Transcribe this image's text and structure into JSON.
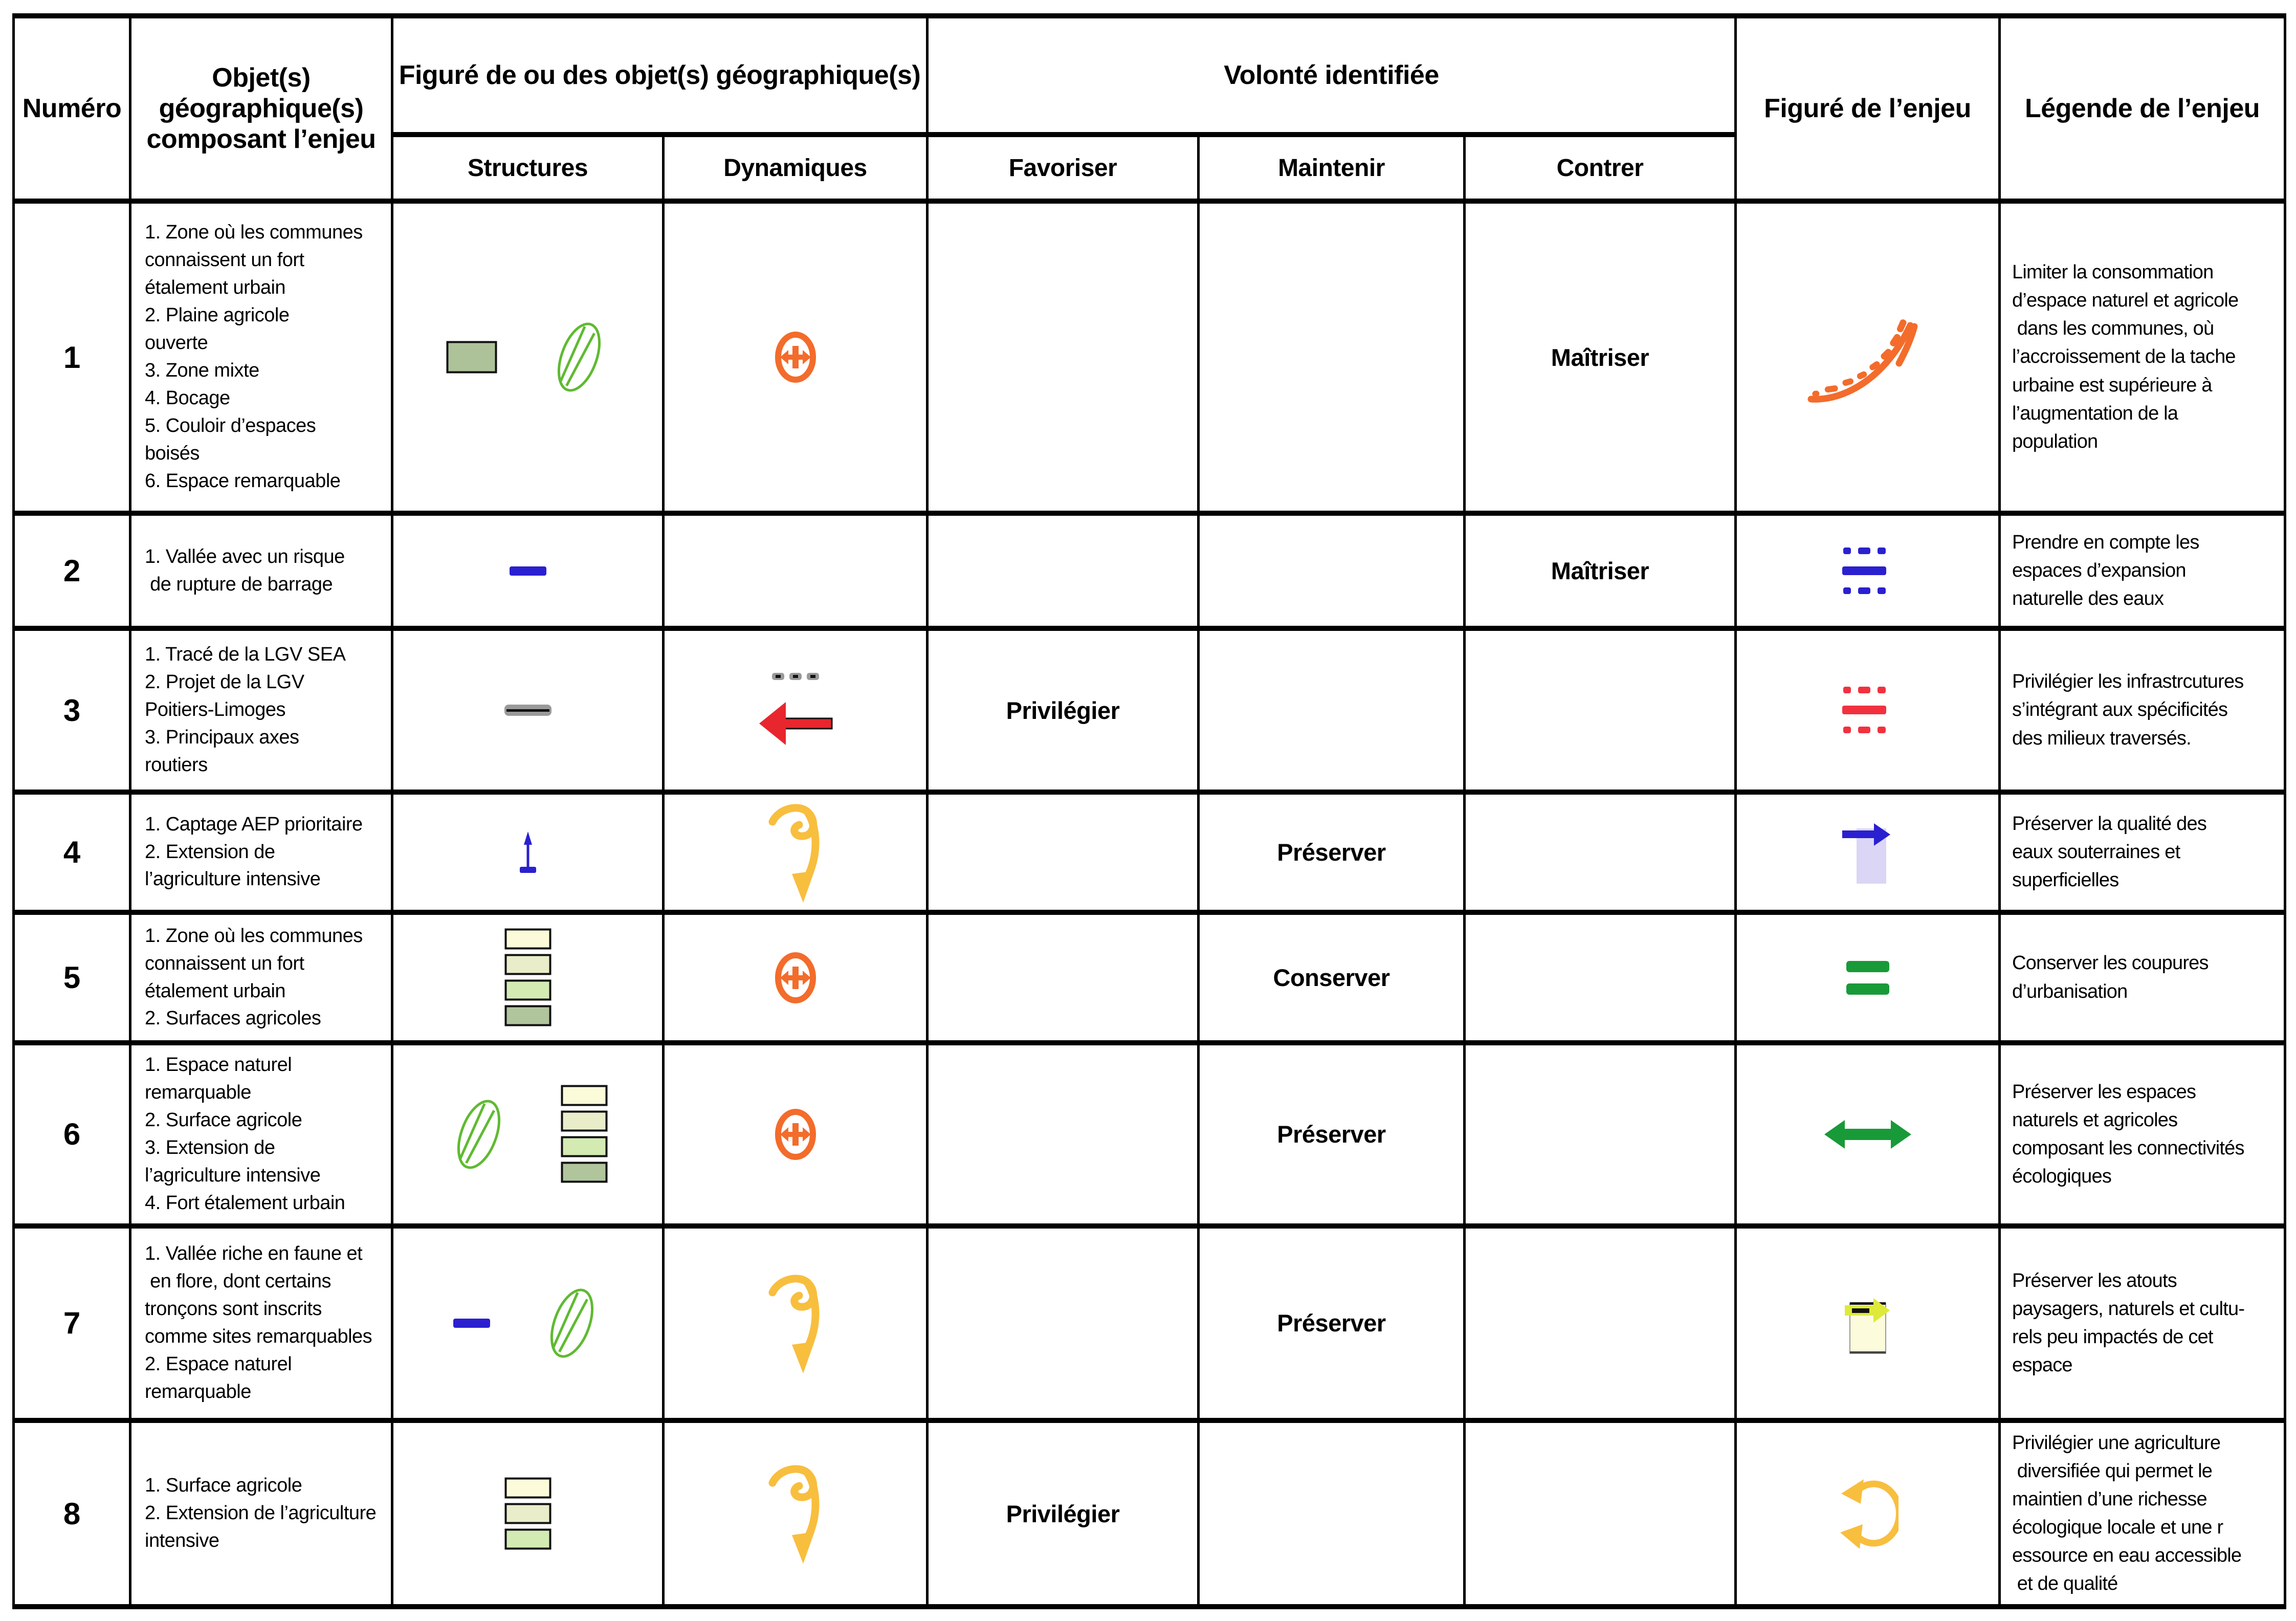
{
  "colors": {
    "orange": "#F36C2B",
    "blue": "#2A20D0",
    "green": "#189A38",
    "leaf_green": "#5FBA31",
    "yellow": "#F8BE3E",
    "red": "#F2313F",
    "arrow_red": "#E8262E",
    "gray": "#9A9A9A",
    "lavender": "#DBD5F6",
    "chartreuse": "#DEE93A",
    "urban_square": "#AEC29A",
    "pale_yellow_rect": "#FCFCDC",
    "swatches": [
      "#FBFBD9",
      "#EAEDCA",
      "#D3EBB3",
      "#B1C59D"
    ],
    "black": "#111111"
  },
  "table": {
    "headers": {
      "numero": "Numéro",
      "objets": "Objet(s)\ngéographique(s)\ncomposant l’enjeu",
      "figure_objets": "Figuré de ou des objet(s) géographique(s)",
      "structures": "Structures",
      "dynamiques": "Dynamiques",
      "volonte": "Volonté identifiée",
      "favoriser": "Favoriser",
      "maintenir": "Maintenir",
      "contrer": "Contrer",
      "figure_enjeu": "Figuré de l’enjeu",
      "legende_enjeu": "Légende de l’enjeu"
    },
    "rows": [
      {
        "numero": "1",
        "objets": "1. Zone où les communes\nconnaissent un fort\nétalement urbain\n2. Plaine agricole\nouverte\n3. Zone mixte\n4. Bocage\n5. Couloir d’espaces\nboisés\n6. Espace remarquable",
        "structures": [
          "urban-zone-swatch",
          "remarkable-space-ellipse"
        ],
        "dynamiques": [
          "urban-spread-ellipse-arrow"
        ],
        "favoriser": "",
        "maintenir": "",
        "contrer": "Maîtriser",
        "figure": [
          "urban-growth-curve"
        ],
        "legende": "Limiter la consommation\nd’espace naturel et agricole\n dans les communes, où\nl’accroissement de la tache\nurbaine est supérieure à\nl’augmentation de la\npopulation"
      },
      {
        "numero": "2",
        "objets": "1. Vallée avec un risque\n de rupture de barrage",
        "structures": [
          "valley-line"
        ],
        "dynamiques": [],
        "favoriser": "",
        "maintenir": "",
        "contrer": "Maîtriser",
        "figure": [
          "water-expansion-lines"
        ],
        "legende": "Prendre en compte les\nespaces d’expansion\nnaturelle des eaux"
      },
      {
        "numero": "3",
        "objets": "1. Tracé de la LGV SEA\n2. Projet de la LGV\nPoitiers-Limoges\n3. Principaux axes\nroutiers",
        "structures": [
          "lgv-route-line"
        ],
        "dynamiques": [
          "lgv-project-dashed-line",
          "road-axis-arrow"
        ],
        "favoriser": "Privilégier",
        "maintenir": "",
        "contrer": "",
        "figure": [
          "infrastructure-lines"
        ],
        "legende": "Privilégier les infrastrcutures\ns’intégrant aux spécificités\ndes milieux traversés."
      },
      {
        "numero": "4",
        "objets": "1. Captage AEP prioritaire\n2. Extension de\nl’agriculture intensive",
        "structures": [
          "aep-catchment-marker"
        ],
        "dynamiques": [
          "intensive-agriculture-swirl"
        ],
        "favoriser": "",
        "maintenir": "Préserver",
        "contrer": "",
        "figure": [
          "water-quality-arrow"
        ],
        "legende": "Préserver la qualité des\neaux souterraines et\nsuperficielles"
      },
      {
        "numero": "5",
        "objets": "1. Zone où les communes\nconnaissent un fort\nétalement urbain\n2. Surfaces agricoles",
        "structures": [
          "land-use-swatch-stack-4"
        ],
        "dynamiques": [
          "urban-spread-ellipse-arrow"
        ],
        "favoriser": "",
        "maintenir": "Conserver",
        "contrer": "",
        "figure": [
          "urban-break-equals"
        ],
        "legende": "Conserver les coupures\nd’urbanisation"
      },
      {
        "numero": "6",
        "objets": "1. Espace naturel\nremarquable\n2. Surface agricole\n3. Extension de\nl’agriculture intensive\n4. Fort étalement urbain",
        "structures": [
          "remarkable-space-ellipse",
          "land-use-swatch-stack-4"
        ],
        "dynamiques": [
          "urban-spread-ellipse-arrow"
        ],
        "favoriser": "",
        "maintenir": "Préserver",
        "contrer": "",
        "figure": [
          "ecological-connectivity-arrow"
        ],
        "legende": "Préserver les espaces\nnaturels et agricoles\ncomposant les connectivités\nécologiques"
      },
      {
        "numero": "7",
        "objets": "1. Vallée riche en faune et\n en flore, dont certains\ntronçons sont inscrits\ncomme sites remarquables\n2. Espace naturel\nremarquable",
        "structures": [
          "valley-line",
          "remarkable-space-ellipse"
        ],
        "dynamiques": [
          "intensive-agriculture-swirl"
        ],
        "favoriser": "",
        "maintenir": "Préserver",
        "contrer": "",
        "figure": [
          "landscape-assets-marker"
        ],
        "legende": "Préserver les atouts\npaysagers, naturels et cultu-\nrels peu impactés de cet\nespace"
      },
      {
        "numero": "8",
        "objets": "1. Surface agricole\n2. Extension de l’agriculture\nintensive",
        "structures": [
          "land-use-swatch-stack-3"
        ],
        "dynamiques": [
          "intensive-agriculture-swirl"
        ],
        "favoriser": "Privilégier",
        "maintenir": "",
        "contrer": "",
        "figure": [
          "diversified-agriculture-cycle"
        ],
        "legende": "Privilégier une agriculture\n diversifiée qui permet le\nmaintien d’une richesse\nécologique locale et une r\nessource en eau accessible\n et de qualité"
      }
    ]
  }
}
